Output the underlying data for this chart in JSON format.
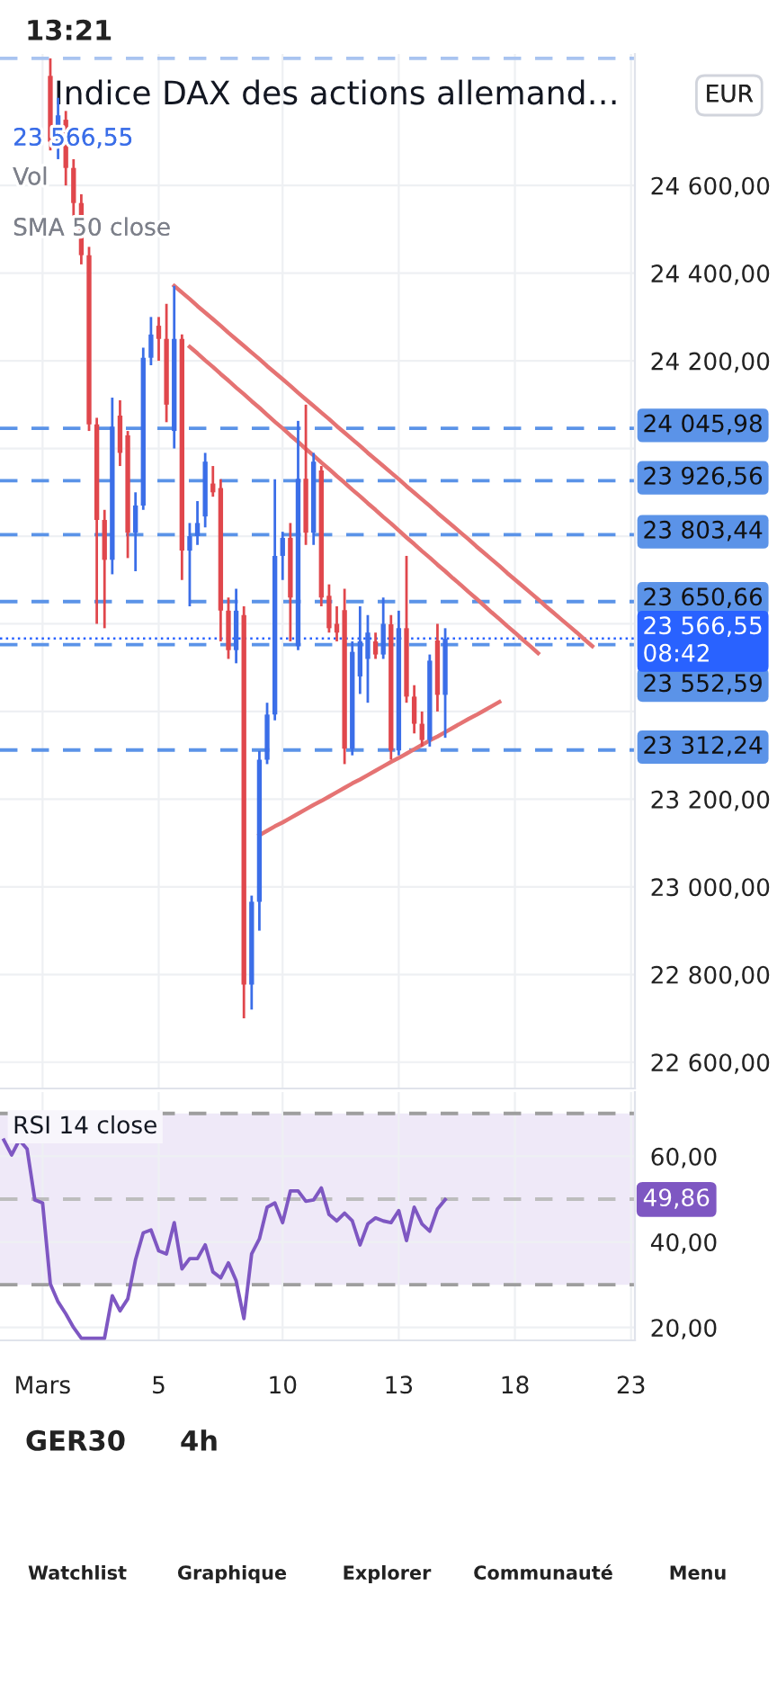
{
  "chart_data": [
    {
      "type": "candlestick",
      "title": "Indice DAX des actions allemand…",
      "subtitle": "23 566,55",
      "annotations": [
        "Vol",
        "SMA 50 close",
        "EUR"
      ],
      "categories": [
        null,
        null,
        null,
        null,
        null,
        null,
        null,
        null,
        null,
        null,
        null,
        null,
        null,
        null,
        null,
        null,
        null,
        null,
        null,
        null,
        null,
        null,
        null,
        null,
        null,
        null,
        null,
        null,
        null,
        null,
        null,
        null,
        null,
        null,
        null,
        null,
        null,
        null,
        null,
        null,
        null,
        null,
        null,
        null,
        null,
        null,
        null,
        null,
        null,
        null,
        null,
        null,
        null,
        null,
        null,
        null,
        null,
        null,
        null,
        null,
        null,
        null,
        null,
        null,
        null,
        null,
        null,
        null,
        null,
        null,
        null,
        null,
        null,
        null,
        null,
        null,
        null,
        null,
        null,
        null,
        null,
        null
      ],
      "ohlc": [
        null,
        null,
        null,
        null,
        null,
        null,
        [
          24850,
          24890,
          24680,
          24700
        ],
        [
          24700,
          24800,
          24660,
          24760
        ],
        [
          24750,
          24770,
          24600,
          24640
        ],
        [
          24640,
          24660,
          24520,
          24560
        ],
        [
          24560,
          24580,
          24420,
          24441
        ],
        [
          24441,
          24460,
          24040,
          24055
        ],
        [
          24055,
          24070,
          23600,
          23837
        ],
        [
          23837,
          23860,
          23590,
          23746
        ],
        [
          23746,
          24116,
          23713,
          24050
        ],
        [
          24075,
          24110,
          23960,
          23990
        ],
        [
          24030,
          24040,
          23750,
          23808
        ],
        [
          23808,
          23900,
          23720,
          23870
        ],
        [
          23870,
          24230,
          23860,
          24207
        ],
        [
          24207,
          24300,
          24190,
          24260
        ],
        [
          24280,
          24300,
          24200,
          24250
        ],
        [
          24250,
          24330,
          24060,
          24100
        ],
        [
          24040,
          24371,
          24000,
          24250
        ],
        [
          24250,
          24260,
          23700,
          23767
        ],
        [
          23767,
          23830,
          23640,
          23800
        ],
        [
          23800,
          23880,
          23780,
          23830
        ],
        [
          23845,
          23990,
          23820,
          23970
        ],
        [
          23920,
          23960,
          23890,
          23900
        ],
        [
          23910,
          23930,
          23560,
          23630
        ],
        [
          23630,
          23660,
          23520,
          23540
        ],
        [
          23540,
          23680,
          23510,
          23630
        ],
        [
          23620,
          23640,
          22700,
          22777
        ],
        [
          22777,
          22980,
          22720,
          22966
        ],
        [
          22966,
          23310,
          22900,
          23290
        ],
        [
          23290,
          23420,
          23280,
          23393
        ],
        [
          23393,
          23930,
          23380,
          23755
        ],
        [
          23755,
          23810,
          23700,
          23796
        ],
        [
          23796,
          23830,
          23560,
          23660
        ],
        [
          23549,
          24063,
          23540,
          23931
        ],
        [
          23931,
          24100,
          23780,
          23808
        ],
        [
          23808,
          23990,
          23780,
          23970
        ],
        [
          23950,
          23960,
          23640,
          23660
        ],
        [
          23664,
          23690,
          23580,
          23590
        ],
        [
          23600,
          23640,
          23560,
          23580
        ],
        [
          23631,
          23680,
          23280,
          23315
        ],
        [
          23315,
          23560,
          23300,
          23536
        ],
        [
          23480,
          23640,
          23440,
          23560
        ],
        [
          23520,
          23620,
          23420,
          23580
        ],
        [
          23560,
          23580,
          23520,
          23530
        ],
        [
          23530,
          23660,
          23520,
          23600
        ],
        [
          23599,
          23620,
          23290,
          23311
        ],
        [
          23311,
          23630,
          23300,
          23590
        ],
        [
          23590,
          23755,
          23420,
          23434
        ],
        [
          23434,
          23460,
          23350,
          23372
        ],
        [
          23372,
          23400,
          23320,
          23335
        ],
        [
          23335,
          23530,
          23320,
          23516
        ],
        [
          23562,
          23600,
          23400,
          23438
        ],
        [
          23438,
          23590,
          23340,
          23566
        ],
        null,
        null,
        null,
        null,
        null,
        null,
        null,
        null,
        null,
        null,
        null,
        null,
        null,
        null,
        null,
        null,
        null,
        null,
        null,
        null,
        null,
        null,
        null,
        null
      ],
      "colors": [
        null,
        null,
        null,
        null,
        null,
        null,
        "#e0474c",
        "#3b6ee8",
        "#e0474c",
        "#e0474c",
        "#e0474c",
        "#e0474c",
        "#e0474c",
        "#e0474c",
        "#3b6ee8",
        "#e0474c",
        "#e0474c",
        "#3b6ee8",
        "#3b6ee8",
        "#3b6ee8",
        "#e0474c",
        "#e0474c",
        "#3b6ee8",
        "#e0474c",
        "#3b6ee8",
        "#3b6ee8",
        "#3b6ee8",
        "#e0474c",
        "#e0474c",
        "#e0474c",
        "#3b6ee8",
        "#e0474c",
        "#3b6ee8",
        "#3b6ee8",
        "#3b6ee8",
        "#3b6ee8",
        "#3b6ee8",
        "#e0474c",
        "#3b6ee8",
        "#e0474c",
        "#3b6ee8",
        "#e0474c",
        "#e0474c",
        "#e0474c",
        "#e0474c",
        "#3b6ee8",
        "#3b6ee8",
        "#3b6ee8",
        "#e0474c",
        "#3b6ee8",
        "#e0474c",
        "#3b6ee8",
        "#e0474c",
        "#e0474c",
        "#e0474c",
        "#3b6ee8",
        "#e0474c",
        "#3b6ee8",
        null,
        null,
        null,
        null,
        null,
        null,
        null,
        null,
        null,
        null,
        null,
        null,
        null,
        null,
        null,
        null,
        null,
        null,
        null,
        null,
        null,
        null,
        null,
        null
      ],
      "series": [
        {
          "type": "line",
          "color": "#e57373",
          "values": [
            null,
            null,
            null,
            null,
            null,
            null,
            null,
            null,
            null,
            null,
            null,
            null,
            null,
            null,
            null,
            null,
            null,
            null,
            null,
            null,
            null,
            null,
            24371,
            24356,
            24341,
            24325,
            24310,
            24295,
            24280,
            24264,
            24249,
            24234,
            24219,
            24204,
            24188,
            24173,
            24158,
            24143,
            24127,
            24112,
            24097,
            24082,
            24067,
            24051,
            24036,
            24021,
            24006,
            23990,
            23975,
            23960,
            23945,
            23930,
            23914,
            23899,
            23884,
            23869,
            23853,
            23838,
            23823,
            23808,
            23793,
            23777,
            23762,
            23747,
            23732,
            23716,
            23701,
            23686,
            23671,
            23656,
            23640,
            23625,
            23610,
            23595,
            23580,
            23564,
            23549,
            null,
            null,
            null,
            null,
            null
          ]
        },
        {
          "type": "line",
          "color": "#e57373",
          "values": [
            null,
            null,
            null,
            null,
            null,
            null,
            null,
            null,
            null,
            null,
            null,
            null,
            null,
            null,
            null,
            null,
            null,
            null,
            null,
            null,
            null,
            null,
            null,
            null,
            24232,
            24217,
            24201,
            24186,
            24170,
            24155,
            24139,
            24124,
            24108,
            24093,
            24077,
            24061,
            24046,
            24030,
            24015,
            23999,
            23984,
            23968,
            23953,
            23937,
            23922,
            23906,
            23891,
            23875,
            23860,
            23844,
            23829,
            23813,
            23797,
            23782,
            23766,
            23751,
            23735,
            23720,
            23704,
            23689,
            23673,
            23658,
            23642,
            23626,
            23611,
            23595,
            23580,
            23564,
            23549,
            23533,
            null,
            null,
            null,
            null,
            null,
            null,
            null,
            null,
            null,
            null,
            null,
            null
          ]
        },
        {
          "type": "line",
          "color": "#e57373",
          "values": [
            null,
            null,
            null,
            null,
            null,
            null,
            null,
            null,
            null,
            null,
            null,
            null,
            null,
            null,
            null,
            null,
            null,
            null,
            null,
            null,
            null,
            null,
            null,
            null,
            null,
            null,
            null,
            null,
            null,
            null,
            null,
            null,
            null,
            23118,
            23128,
            23138,
            23147,
            23157,
            23167,
            23177,
            23187,
            23196,
            23206,
            23216,
            23226,
            23236,
            23245,
            23255,
            23265,
            23275,
            23285,
            23294,
            23304,
            23314,
            23324,
            23334,
            23343,
            23353,
            23363,
            23373,
            23383,
            23392,
            23402,
            23412,
            23422,
            null,
            null,
            null,
            null,
            null,
            null,
            null,
            null,
            null,
            null,
            null,
            null,
            null,
            null,
            null,
            null,
            null
          ]
        }
      ],
      "ref_lines": [
        {
          "axis": "y",
          "value": 24890,
          "color": "#a9c4f0",
          "line_style": "dashed"
        },
        {
          "axis": "y",
          "value": 24045.98,
          "label": "24 045,98",
          "color": "#5b93e8",
          "line_style": "dashed"
        },
        {
          "axis": "y",
          "value": 23926.56,
          "label": "23 926,56",
          "color": "#5b93e8",
          "line_style": "dashed"
        },
        {
          "axis": "y",
          "value": 23803.44,
          "label": "23 803,44",
          "color": "#5b93e8",
          "line_style": "dashed"
        },
        {
          "axis": "y",
          "value": 23650.66,
          "label": "23 650,66",
          "color": "#5b93e8",
          "line_style": "dashed"
        },
        {
          "axis": "y",
          "value": 23566.55,
          "label": "23 566,55\n08:42",
          "color": "#2962ff",
          "line_style": "dotted"
        },
        {
          "axis": "y",
          "value": 23552.59,
          "label": "23 552,59",
          "color": "#5b93e8",
          "line_style": "dashed"
        },
        {
          "axis": "y",
          "value": 23312.24,
          "label": "23 312,24",
          "color": "#5b93e8",
          "line_style": "dashed"
        }
      ],
      "ylim": [
        22540,
        24900
      ],
      "yticks": [
        {
          "value": 22600,
          "label": "22 600,00"
        },
        {
          "value": 22800,
          "label": "22 800,00"
        },
        {
          "value": 23000,
          "label": "23 000,00"
        },
        {
          "value": 23200,
          "label": "23 200,00"
        },
        {
          "value": 23400,
          "label": null
        },
        {
          "value": 23600,
          "label": null
        },
        {
          "value": 23800,
          "label": null
        },
        {
          "value": 24000,
          "label": null
        },
        {
          "value": 24200,
          "label": "24 200,00"
        },
        {
          "value": 24400,
          "label": "24 400,00"
        },
        {
          "value": 24600,
          "label": "24 600,00"
        }
      ],
      "tick_labels": "y",
      "grid": true
    },
    {
      "type": "line",
      "title": "RSI 14 close",
      "categories": [
        null,
        null,
        null,
        null,
        null,
        "Mars",
        null,
        null,
        null,
        null,
        null,
        null,
        null,
        null,
        null,
        null,
        null,
        null,
        null,
        null,
        "5",
        null,
        null,
        null,
        null,
        null,
        null,
        null,
        null,
        null,
        null,
        null,
        null,
        null,
        null,
        null,
        "10",
        null,
        null,
        null,
        null,
        null,
        null,
        null,
        null,
        null,
        null,
        null,
        null,
        null,
        null,
        "13",
        null,
        null,
        null,
        null,
        null,
        null,
        null,
        null,
        null,
        null,
        null,
        null,
        null,
        null,
        "18",
        null,
        null,
        null,
        null,
        null,
        null,
        null,
        null,
        null,
        null,
        null,
        null,
        null,
        null,
        "23"
      ],
      "series": [
        {
          "color": "#7e57c2",
          "values": [
            63.8,
            60.3,
            63.8,
            61.7,
            49.8,
            49.1,
            30.2,
            26,
            23.2,
            20,
            17.5,
            17.5,
            17.5,
            17.5,
            27.4,
            23.9,
            26.7,
            35.8,
            42.1,
            42.8,
            37.9,
            37.2,
            44.5,
            33.7,
            36.1,
            36.1,
            39.3,
            33.0,
            31.6,
            35.1,
            30.9,
            22.1,
            37.2,
            40.7,
            48.1,
            49.1,
            44.5,
            51.9,
            51.9,
            49.5,
            49.8,
            52.6,
            46.4,
            44.9,
            46.7,
            44.9,
            39.3,
            44.2,
            45.6,
            44.9,
            44.5,
            47.3,
            40.3,
            48.1,
            44.2,
            42.5,
            47.7,
            49.9,
            null,
            null,
            null,
            null,
            null,
            null,
            null,
            null,
            null,
            null,
            null,
            null,
            null,
            null,
            null,
            null,
            null,
            null,
            null,
            null,
            null,
            null,
            null,
            null
          ]
        }
      ],
      "annotations": [
        "49,86"
      ],
      "ref_lines": [
        {
          "axis": "y",
          "value": 70,
          "color": "#9e9e9e",
          "line_style": "dashed"
        },
        {
          "axis": "y",
          "value": 50,
          "color": "#bdbdbd",
          "line_style": "dashed"
        },
        {
          "axis": "y",
          "value": 30,
          "color": "#9e9e9e",
          "line_style": "dashed"
        }
      ],
      "bands": [
        {
          "axis": "y",
          "from": 30,
          "to": 70,
          "color": "#efe9f8"
        }
      ],
      "ylim": [
        17,
        75
      ],
      "yticks": [
        {
          "value": 20,
          "label": "20,00"
        },
        {
          "value": 40,
          "label": "40,00"
        },
        {
          "value": 60,
          "label": "60,00"
        }
      ],
      "grid": true
    },
    {
      "type": "other",
      "annotations": [
        "13:21",
        "GER30",
        "4h",
        "Watchlist",
        "Graphique",
        "Explorer",
        "Communauté",
        "Menu"
      ]
    }
  ]
}
